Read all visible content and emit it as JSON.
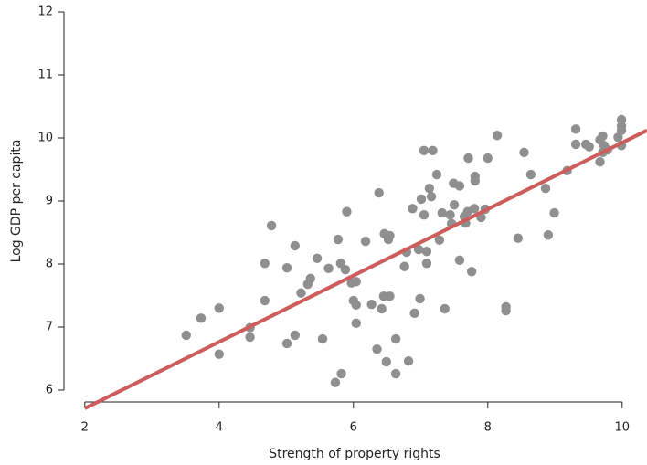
{
  "chart_data": {
    "type": "scatter",
    "x_label": "Strength of property rights",
    "y_label": "Log GDP per capita",
    "xlim": [
      1.69,
      10.37
    ],
    "ylim": [
      5.6,
      12
    ],
    "xticks": [
      2,
      4,
      6,
      8,
      10
    ],
    "yticks": [
      6,
      7,
      8,
      9,
      10,
      11,
      12
    ],
    "point_color": "#8f8f8f",
    "x": [
      3.51,
      3.73,
      4.0,
      4.0,
      4.46,
      4.46,
      4.68,
      4.68,
      4.78,
      5.01,
      5.01,
      5.13,
      5.13,
      5.22,
      5.32,
      5.36,
      5.46,
      5.54,
      5.63,
      5.73,
      5.77,
      5.81,
      5.82,
      5.88,
      5.9,
      5.97,
      6.0,
      6.04,
      6.04,
      6.04,
      6.18,
      6.27,
      6.35,
      6.38,
      6.42,
      6.45,
      6.46,
      6.49,
      6.52,
      6.54,
      6.54,
      6.63,
      6.63,
      6.76,
      6.79,
      6.82,
      6.88,
      6.91,
      6.97,
      6.99,
      7.01,
      7.05,
      7.05,
      7.09,
      7.09,
      7.13,
      7.16,
      7.18,
      7.24,
      7.28,
      7.32,
      7.36,
      7.44,
      7.46,
      7.49,
      7.5,
      7.58,
      7.58,
      7.65,
      7.67,
      7.7,
      7.71,
      7.76,
      7.8,
      7.81,
      7.81,
      7.9,
      7.96,
      8.0,
      8.14,
      8.27,
      8.27,
      8.45,
      8.54,
      8.64,
      8.86,
      8.9,
      8.99,
      9.18,
      9.31,
      9.31,
      9.46,
      9.51,
      9.67,
      9.67,
      9.71,
      9.71,
      9.73,
      9.78,
      9.94,
      9.99,
      9.99,
      9.99,
      9.99
    ],
    "y": [
      6.87,
      7.14,
      7.3,
      6.57,
      6.99,
      6.84,
      8.01,
      7.42,
      8.61,
      7.94,
      6.74,
      8.29,
      6.87,
      7.54,
      7.68,
      7.77,
      8.09,
      6.81,
      7.93,
      6.12,
      8.39,
      8.01,
      6.26,
      7.91,
      8.83,
      7.7,
      7.42,
      7.72,
      7.35,
      7.06,
      8.36,
      7.36,
      6.65,
      9.13,
      7.29,
      7.49,
      8.48,
      6.45,
      8.39,
      8.45,
      7.49,
      6.81,
      6.26,
      7.96,
      8.19,
      6.46,
      8.88,
      7.22,
      8.23,
      7.45,
      9.03,
      9.8,
      8.78,
      8.2,
      8.01,
      9.2,
      9.07,
      9.8,
      9.42,
      8.38,
      8.81,
      7.29,
      8.78,
      8.64,
      9.28,
      8.94,
      9.24,
      8.06,
      8.75,
      8.65,
      8.83,
      9.68,
      7.88,
      8.88,
      9.39,
      9.32,
      8.74,
      8.87,
      9.68,
      10.04,
      7.32,
      7.26,
      8.41,
      9.77,
      9.42,
      9.2,
      8.46,
      8.81,
      9.48,
      10.14,
      9.9,
      9.9,
      9.86,
      9.62,
      9.97,
      10.03,
      9.77,
      9.88,
      9.81,
      10.01,
      10.29,
      10.19,
      9.88,
      10.12
    ],
    "fit_line": {
      "x": [
        2,
        10.37
      ],
      "y": [
        5.71,
        10.12
      ],
      "color": "#cd5c5c"
    }
  }
}
